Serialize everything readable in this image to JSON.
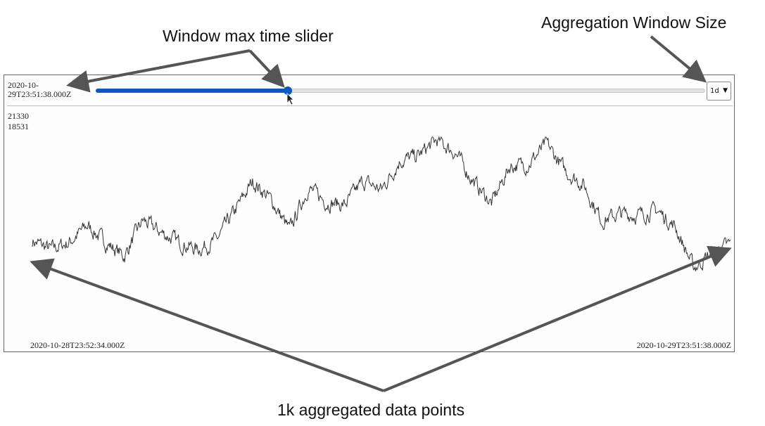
{
  "annotations": {
    "slider": "Window max time slider",
    "aggregation": "Aggregation Window Size",
    "points": "1k aggregated data points"
  },
  "controls": {
    "max_time_label": "2020-10-29T23:51:38.000Z",
    "slider_fraction": 0.315,
    "window_size": "1d"
  },
  "chart_data": {
    "type": "line",
    "y_labels": [
      "21330",
      "18531"
    ],
    "x_start_label": "2020-10-28T23:52:34.000Z",
    "x_end_label": "2020-10-29T23:51:38.000Z",
    "grid": false,
    "point_count": 1000,
    "trend": [
      0.39,
      0.34,
      0.38,
      0.48,
      0.38,
      0.3,
      0.51,
      0.44,
      0.38,
      0.34,
      0.39,
      0.56,
      0.74,
      0.63,
      0.45,
      0.7,
      0.62,
      0.6,
      0.74,
      0.69,
      0.86,
      0.89,
      0.98,
      0.91,
      0.74,
      0.61,
      0.83,
      0.84,
      0.96,
      0.8,
      0.72,
      0.51,
      0.55,
      0.54,
      0.57,
      0.47,
      0.23,
      0.32,
      0.37
    ]
  }
}
